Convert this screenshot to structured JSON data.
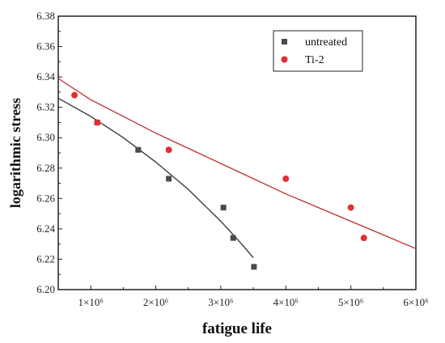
{
  "chart_data": {
    "type": "scatter",
    "xlabel": "fatigue life",
    "ylabel": "logarithmic stress",
    "xlim": [
      500000,
      6000000
    ],
    "ylim": [
      6.2,
      6.38
    ],
    "x_ticks": [
      1000000,
      2000000,
      3000000,
      4000000,
      5000000,
      6000000
    ],
    "x_tick_labels": [
      "1×10⁶",
      "2×10⁶",
      "3×10⁶",
      "4×10⁶",
      "5×10⁶",
      "6×10⁶"
    ],
    "y_ticks": [
      6.2,
      6.22,
      6.24,
      6.26,
      6.28,
      6.3,
      6.32,
      6.34,
      6.36,
      6.38
    ],
    "y_tick_labels": [
      "6.20",
      "6.22",
      "6.24",
      "6.26",
      "6.28",
      "6.30",
      "6.32",
      "6.34",
      "6.36",
      "6.38"
    ],
    "legend_position": "top-right",
    "grid": false,
    "series": [
      {
        "name": "untreated",
        "marker": "square",
        "color": "#4a4a4a",
        "fit_color": "#333333",
        "points": [
          {
            "x": 1100000,
            "y": 6.31
          },
          {
            "x": 1730000,
            "y": 6.292
          },
          {
            "x": 2200000,
            "y": 6.273
          },
          {
            "x": 3040000,
            "y": 6.254
          },
          {
            "x": 3190000,
            "y": 6.234
          },
          {
            "x": 3510000,
            "y": 6.215
          }
        ],
        "fit": [
          {
            "x": 500000,
            "y": 6.326
          },
          {
            "x": 1000000,
            "y": 6.314
          },
          {
            "x": 1500000,
            "y": 6.3
          },
          {
            "x": 2000000,
            "y": 6.284
          },
          {
            "x": 2500000,
            "y": 6.266
          },
          {
            "x": 3000000,
            "y": 6.245
          },
          {
            "x": 3300000,
            "y": 6.231
          },
          {
            "x": 3500000,
            "y": 6.221
          }
        ]
      },
      {
        "name": "Ti-2",
        "marker": "circle",
        "color": "#e03030",
        "fit_color": "#c03030",
        "points": [
          {
            "x": 750000,
            "y": 6.328
          },
          {
            "x": 1100000,
            "y": 6.31
          },
          {
            "x": 2200000,
            "y": 6.292
          },
          {
            "x": 4000000,
            "y": 6.273
          },
          {
            "x": 5000000,
            "y": 6.254
          },
          {
            "x": 5200000,
            "y": 6.234
          }
        ],
        "fit": [
          {
            "x": 500000,
            "y": 6.339
          },
          {
            "x": 1000000,
            "y": 6.325
          },
          {
            "x": 1500000,
            "y": 6.314
          },
          {
            "x": 2000000,
            "y": 6.303
          },
          {
            "x": 2500000,
            "y": 6.293
          },
          {
            "x": 3000000,
            "y": 6.283
          },
          {
            "x": 3500000,
            "y": 6.273
          },
          {
            "x": 4000000,
            "y": 6.263
          },
          {
            "x": 4500000,
            "y": 6.254
          },
          {
            "x": 5000000,
            "y": 6.245
          },
          {
            "x": 5500000,
            "y": 6.236
          },
          {
            "x": 6000000,
            "y": 6.227
          }
        ]
      }
    ]
  }
}
